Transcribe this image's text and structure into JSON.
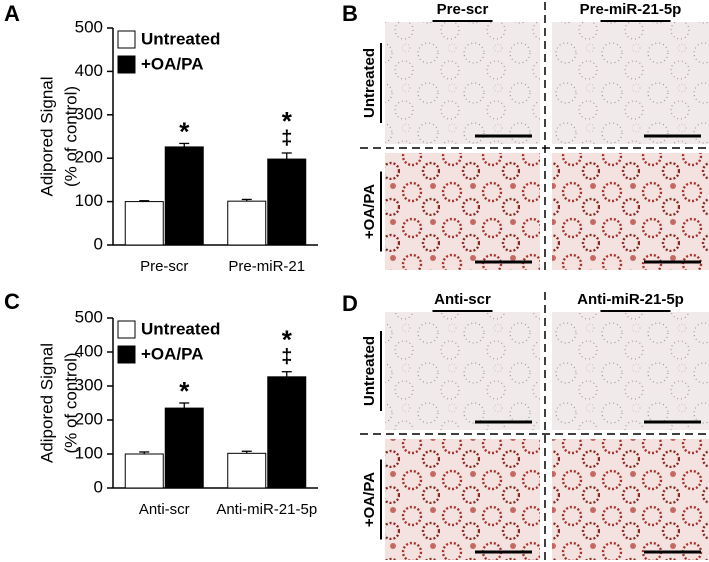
{
  "chart_data": [
    {
      "type": "bar",
      "label": "A",
      "ylabel": [
        "Adipored Signal",
        "(% of control)"
      ],
      "categories": [
        "Pre-scr",
        "Pre-miR-21"
      ],
      "series": [
        {
          "name": "Untreated",
          "color": "#ffffff",
          "values": [
            100,
            101
          ],
          "errors": [
            2,
            4
          ]
        },
        {
          "name": "+OA/PA",
          "color": "#000000",
          "values": [
            226,
            198
          ],
          "errors": [
            8,
            14
          ],
          "annotations": [
            [
              "*"
            ],
            [
              "*",
              "‡"
            ]
          ]
        }
      ],
      "ylim": [
        0,
        500
      ],
      "yticks": [
        0,
        100,
        200,
        300,
        400,
        500
      ],
      "legend": "top-left"
    },
    {
      "type": "bar",
      "label": "C",
      "ylabel": [
        "Adipored Signal",
        "(% of control)"
      ],
      "categories": [
        "Anti-scr",
        "Anti-miR-21-5p"
      ],
      "series": [
        {
          "name": "Untreated",
          "color": "#ffffff",
          "values": [
            100,
            102
          ],
          "errors": [
            6,
            6
          ]
        },
        {
          "name": "+OA/PA",
          "color": "#000000",
          "values": [
            235,
            327
          ],
          "errors": [
            15,
            15
          ],
          "annotations": [
            [
              "*"
            ],
            [
              "*",
              "‡"
            ]
          ]
        }
      ],
      "ylim": [
        0,
        500
      ],
      "yticks": [
        0,
        100,
        200,
        300,
        400,
        500
      ],
      "legend": "top-left"
    }
  ],
  "panels": [
    {
      "label": "B",
      "columns": [
        "Pre-scr",
        "Pre-miR-21-5p"
      ],
      "rows": [
        "Untreated",
        "+OA/PA"
      ]
    },
    {
      "label": "D",
      "columns": [
        "Anti-scr",
        "Anti-miR-21-5p"
      ],
      "rows": [
        "Untreated",
        "+OA/PA"
      ]
    }
  ]
}
